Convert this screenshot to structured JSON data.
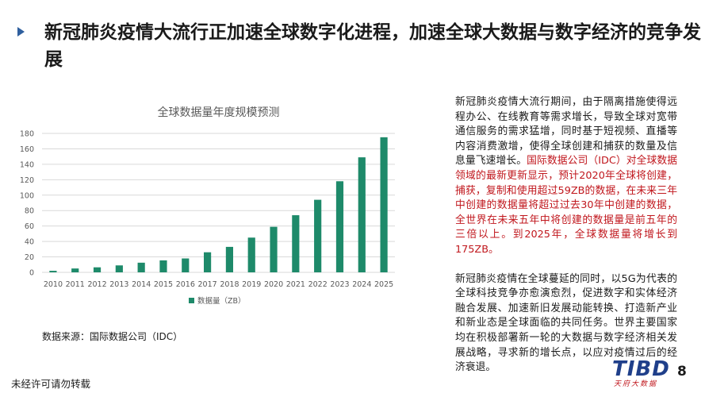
{
  "header": {
    "title": "新冠肺炎疫情大流行正加速全球数字化进程，加速全球大数据与数字经济的竞争发展"
  },
  "chart_data": {
    "type": "bar",
    "title": "全球数据量年度规模预测",
    "categories": [
      "2010",
      "2011",
      "2012",
      "2013",
      "2014",
      "2015",
      "2016",
      "2017",
      "2018",
      "2019",
      "2020",
      "2021",
      "2022",
      "2023",
      "2024",
      "2025"
    ],
    "series": [
      {
        "name": "数据量（ZB）",
        "values": [
          2,
          5,
          6.5,
          9,
          12.5,
          15.5,
          18,
          26,
          33,
          45,
          59,
          74,
          94,
          118,
          149,
          175
        ]
      }
    ],
    "ylim": [
      0,
      180
    ],
    "yticks": [
      0,
      20,
      40,
      60,
      80,
      100,
      120,
      140,
      160,
      180
    ],
    "grid": true,
    "legend": "bottom",
    "bar_color": "#1e8a6a"
  },
  "source_note": "数据来源：国际数据公司（IDC）",
  "side_text": {
    "p1_normal": "新冠肺炎疫情大流行期间，由于隔离措施使得远程办公、在线教育等需求增长，导致全球对宽带通信服务的需求猛增，同时基于短视频、直播等内容消费激增，使得全球创建和捕获的数量及信息量飞速增长。",
    "p1_red": "国际数据公司（IDC）对全球数据领域的最新更新显示，预计2020年全球将创建，捕获，复制和使用超过59ZB的数据，在未来三年中创建的数据量将超过过去30年中创建的数据，全世界在未来五年中将创建的数据量是前五年的三倍以上。到2025年，全球数据量将增长到175ZB。",
    "p2": "新冠肺炎疫情在全球蔓延的同时，以5G为代表的全球科技竞争亦愈演愈烈，促进数字和实体经济融合发展、加速新旧发展动能转换、打造新产业和新业态是全球面临的共同任务。世界主要国家均在积极部署新一轮的大数据与数字经济相关发展战略，寻求新的增长点，以应对疫情过后的经济衰退。"
  },
  "footer": {
    "note": "未经许可请勿转载",
    "logo_main": "TIBD",
    "logo_sub": "天府大数据",
    "page_number": "8"
  },
  "colors": {
    "accent": "#2f5f9e",
    "highlight_red": "#c0161c",
    "bar": "#1e8a6a"
  }
}
